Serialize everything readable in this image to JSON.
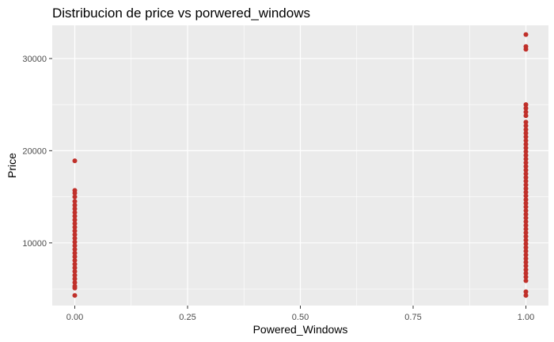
{
  "chart_data": {
    "type": "scatter",
    "title": "Distribucion de price vs porwered_windows",
    "xlabel": "Powered_Windows",
    "ylabel": "Price",
    "xlim": [
      -0.05,
      1.05
    ],
    "ylim": [
      3200,
      33600
    ],
    "x_ticks": [
      0.0,
      0.25,
      0.5,
      0.75,
      1.0
    ],
    "x_tick_labels": [
      "0.00",
      "0.25",
      "0.50",
      "0.75",
      "1.00"
    ],
    "y_ticks": [
      10000,
      20000,
      30000
    ],
    "y_tick_labels": [
      "10000",
      "20000",
      "30000"
    ],
    "grid": true,
    "point_color": "#c0302a",
    "panel_background": "#ebebeb",
    "grid_color": "#ffffff",
    "points": [
      {
        "x": 0,
        "y": 18900
      },
      {
        "x": 0,
        "y": 15700
      },
      {
        "x": 0,
        "y": 15400
      },
      {
        "x": 0,
        "y": 15000
      },
      {
        "x": 0,
        "y": 14500
      },
      {
        "x": 0,
        "y": 14100
      },
      {
        "x": 0,
        "y": 13700
      },
      {
        "x": 0,
        "y": 13300
      },
      {
        "x": 0,
        "y": 12900
      },
      {
        "x": 0,
        "y": 12500
      },
      {
        "x": 0,
        "y": 12100
      },
      {
        "x": 0,
        "y": 11700
      },
      {
        "x": 0,
        "y": 11300
      },
      {
        "x": 0,
        "y": 10900
      },
      {
        "x": 0,
        "y": 10500
      },
      {
        "x": 0,
        "y": 10100
      },
      {
        "x": 0,
        "y": 9700
      },
      {
        "x": 0,
        "y": 9300
      },
      {
        "x": 0,
        "y": 8900
      },
      {
        "x": 0,
        "y": 8500
      },
      {
        "x": 0,
        "y": 8100
      },
      {
        "x": 0,
        "y": 7700
      },
      {
        "x": 0,
        "y": 7300
      },
      {
        "x": 0,
        "y": 6900
      },
      {
        "x": 0,
        "y": 6500
      },
      {
        "x": 0,
        "y": 6100
      },
      {
        "x": 0,
        "y": 5700
      },
      {
        "x": 0,
        "y": 5300
      },
      {
        "x": 0,
        "y": 5100
      },
      {
        "x": 0,
        "y": 4300
      },
      {
        "x": 1,
        "y": 32600
      },
      {
        "x": 1,
        "y": 31300
      },
      {
        "x": 1,
        "y": 31000
      },
      {
        "x": 1,
        "y": 25000
      },
      {
        "x": 1,
        "y": 24600
      },
      {
        "x": 1,
        "y": 24200
      },
      {
        "x": 1,
        "y": 23800
      },
      {
        "x": 1,
        "y": 23100
      },
      {
        "x": 1,
        "y": 22700
      },
      {
        "x": 1,
        "y": 22300
      },
      {
        "x": 1,
        "y": 21900
      },
      {
        "x": 1,
        "y": 21500
      },
      {
        "x": 1,
        "y": 21100
      },
      {
        "x": 1,
        "y": 20700
      },
      {
        "x": 1,
        "y": 20300
      },
      {
        "x": 1,
        "y": 19900
      },
      {
        "x": 1,
        "y": 19500
      },
      {
        "x": 1,
        "y": 19100
      },
      {
        "x": 1,
        "y": 18700
      },
      {
        "x": 1,
        "y": 18300
      },
      {
        "x": 1,
        "y": 17900
      },
      {
        "x": 1,
        "y": 17500
      },
      {
        "x": 1,
        "y": 17100
      },
      {
        "x": 1,
        "y": 16700
      },
      {
        "x": 1,
        "y": 16300
      },
      {
        "x": 1,
        "y": 15900
      },
      {
        "x": 1,
        "y": 15500
      },
      {
        "x": 1,
        "y": 15100
      },
      {
        "x": 1,
        "y": 14700
      },
      {
        "x": 1,
        "y": 14300
      },
      {
        "x": 1,
        "y": 13900
      },
      {
        "x": 1,
        "y": 13500
      },
      {
        "x": 1,
        "y": 13100
      },
      {
        "x": 1,
        "y": 12700
      },
      {
        "x": 1,
        "y": 12300
      },
      {
        "x": 1,
        "y": 11900
      },
      {
        "x": 1,
        "y": 11500
      },
      {
        "x": 1,
        "y": 11100
      },
      {
        "x": 1,
        "y": 10700
      },
      {
        "x": 1,
        "y": 10300
      },
      {
        "x": 1,
        "y": 9900
      },
      {
        "x": 1,
        "y": 9500
      },
      {
        "x": 1,
        "y": 9100
      },
      {
        "x": 1,
        "y": 8700
      },
      {
        "x": 1,
        "y": 8300
      },
      {
        "x": 1,
        "y": 7900
      },
      {
        "x": 1,
        "y": 7500
      },
      {
        "x": 1,
        "y": 7100
      },
      {
        "x": 1,
        "y": 6700
      },
      {
        "x": 1,
        "y": 6300
      },
      {
        "x": 1,
        "y": 5900
      },
      {
        "x": 1,
        "y": 4700
      },
      {
        "x": 1,
        "y": 4300
      }
    ]
  }
}
